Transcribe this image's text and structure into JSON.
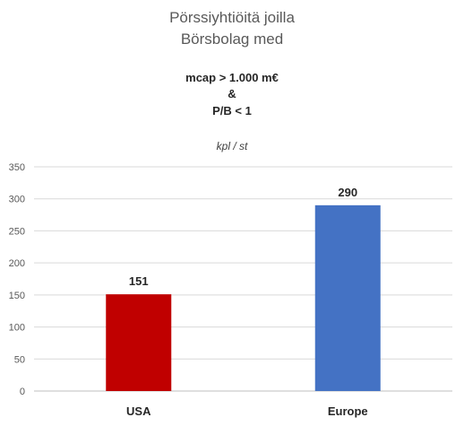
{
  "chart_data": {
    "type": "bar",
    "title": [
      "Pörssiyhtiöitä joilla",
      "Börsbolag med"
    ],
    "subtitle": [
      "mcap > 1.000 m€",
      "&",
      "P/B < 1"
    ],
    "unit_label": "kpl / st",
    "categories": [
      "USA",
      "Europe"
    ],
    "values": [
      151,
      290
    ],
    "data_labels": [
      "151",
      "290"
    ],
    "bar_colors": [
      "#c00000",
      "#4472c4"
    ],
    "ylim": [
      0,
      350
    ],
    "yticks": [
      0,
      50,
      100,
      150,
      200,
      250,
      300,
      350
    ],
    "grid": true,
    "legend": "none"
  }
}
